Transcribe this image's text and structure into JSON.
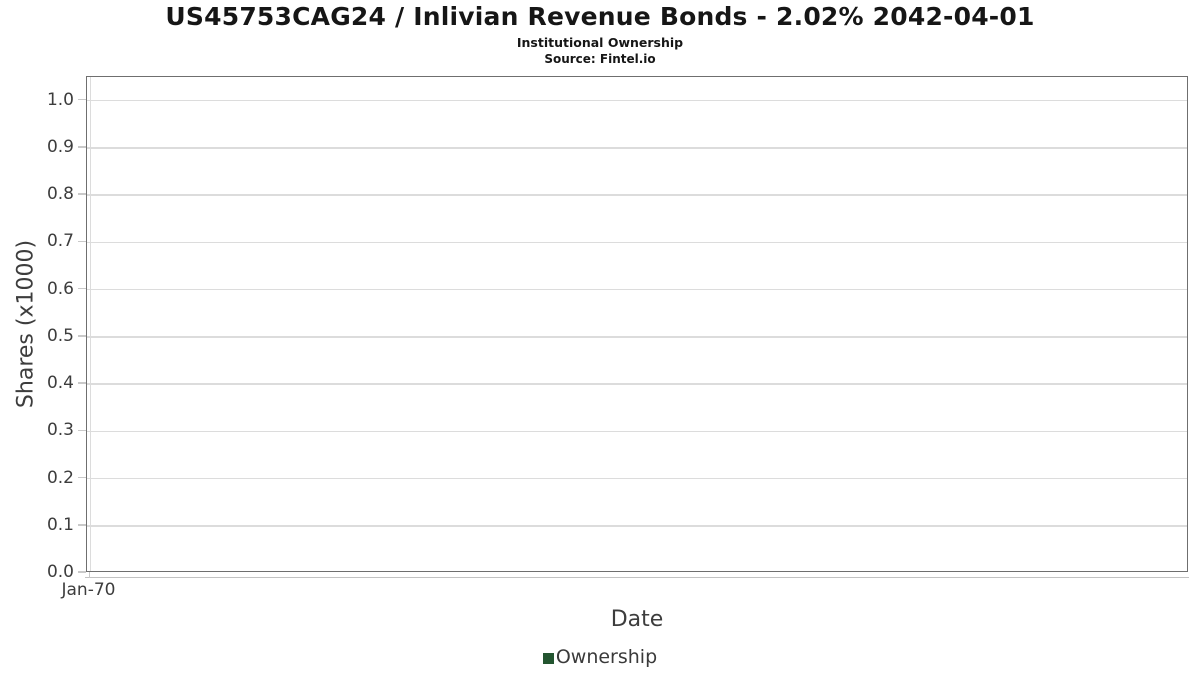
{
  "header": {
    "title": "US45753CAG24 / Inlivian Revenue Bonds - 2.02% 2042-04-01",
    "subtitle": "Institutional Ownership",
    "source": "Source: Fintel.io"
  },
  "chart_data": {
    "type": "bar",
    "title": "US45753CAG24 / Inlivian Revenue Bonds - 2.02% 2042-04-01",
    "subtitle": "Institutional Ownership",
    "source_note": "Source: Fintel.io",
    "xlabel": "Date",
    "ylabel": "Shares (x1000)",
    "x_tick_labels": [
      "Jan-70"
    ],
    "y_ticks": [
      0.0,
      0.1,
      0.2,
      0.3,
      0.4,
      0.5,
      0.6,
      0.7,
      0.8,
      0.9,
      1.0
    ],
    "ylim": [
      0,
      1.05
    ],
    "grid": "on",
    "plot_border": true,
    "legend": {
      "position": "bottom-center",
      "entries": [
        {
          "label": "Ownership",
          "color": "#235530"
        }
      ]
    },
    "series": [
      {
        "name": "Ownership",
        "x": [],
        "values": []
      }
    ],
    "colors": {
      "gridline": "#dcdcdc",
      "plot_border": "#6f6f6f",
      "series_ownership": "#235530"
    }
  }
}
